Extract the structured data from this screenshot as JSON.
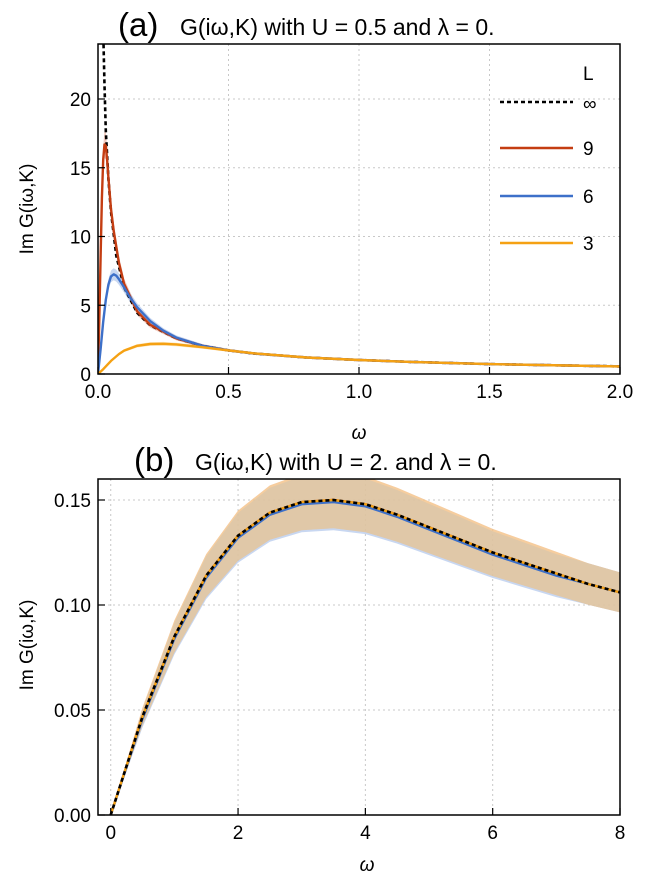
{
  "chart_data": [
    {
      "type": "line",
      "panel_label": "(a)",
      "title": "G(iω,K) with U = 0.5 and λ = 0.",
      "xlabel": "ω",
      "ylabel": "Im G(iω,K)",
      "xlim": [
        0,
        2.0
      ],
      "ylim": [
        0,
        24
      ],
      "xticks": [
        "0.0",
        "0.5",
        "1.0",
        "1.5",
        "2.0"
      ],
      "xtick_values": [
        0,
        0.5,
        1.0,
        1.5,
        2.0
      ],
      "yticks": [
        "0",
        "5",
        "10",
        "15",
        "20"
      ],
      "ytick_values": [
        0,
        5,
        10,
        15,
        20
      ],
      "grid": true,
      "legend_title": "L",
      "legend_position": "top-right",
      "series": [
        {
          "name": "∞",
          "color": "#000000",
          "dashed": true,
          "x": [
            0.02,
            0.025,
            0.03,
            0.04,
            0.05,
            0.07,
            0.1,
            0.15,
            0.2,
            0.3,
            0.4,
            0.5,
            0.6,
            0.8,
            1.0,
            1.2,
            1.5,
            1.8,
            2.0
          ],
          "y": [
            25,
            21.0,
            17.7,
            14.2,
            11.8,
            8.6,
            6.3,
            4.45,
            3.55,
            2.6,
            2.05,
            1.72,
            1.48,
            1.2,
            1.02,
            0.88,
            0.72,
            0.62,
            0.55
          ]
        },
        {
          "name": "9",
          "color": "#c43d12",
          "band": "#e8a08a",
          "x": [
            0,
            0.005,
            0.01,
            0.015,
            0.02,
            0.025,
            0.03,
            0.035,
            0.04,
            0.05,
            0.06,
            0.08,
            0.1,
            0.15,
            0.2,
            0.3,
            0.4,
            0.5,
            0.6,
            0.8,
            1.0,
            1.2,
            1.5,
            1.8,
            2.0
          ],
          "y": [
            0,
            4,
            8.5,
            12.8,
            15.6,
            16.7,
            16.6,
            15.6,
            14.3,
            12.0,
            10.4,
            8.1,
            6.55,
            4.55,
            3.58,
            2.6,
            2.05,
            1.72,
            1.48,
            1.2,
            1.02,
            0.88,
            0.72,
            0.62,
            0.55
          ]
        },
        {
          "name": "6",
          "color": "#3d70c9",
          "band": "#9bb6e6",
          "x": [
            0,
            0.01,
            0.02,
            0.03,
            0.04,
            0.05,
            0.06,
            0.07,
            0.08,
            0.1,
            0.12,
            0.15,
            0.2,
            0.25,
            0.3,
            0.4,
            0.5,
            0.6,
            0.8,
            1.0,
            1.2,
            1.5,
            1.8,
            2.0
          ],
          "y": [
            0,
            1.8,
            3.8,
            5.4,
            6.5,
            7.1,
            7.25,
            7.15,
            6.9,
            6.3,
            5.65,
            4.85,
            3.85,
            3.15,
            2.65,
            2.05,
            1.72,
            1.48,
            1.2,
            1.02,
            0.88,
            0.72,
            0.62,
            0.55
          ]
        },
        {
          "name": "3",
          "color": "#f5a113",
          "band": "#f9cf83",
          "x": [
            0,
            0.02,
            0.05,
            0.08,
            0.1,
            0.15,
            0.2,
            0.25,
            0.3,
            0.4,
            0.5,
            0.6,
            0.8,
            1.0,
            1.2,
            1.5,
            1.8,
            2.0
          ],
          "y": [
            0,
            0.35,
            0.95,
            1.45,
            1.7,
            2.05,
            2.18,
            2.2,
            2.15,
            1.95,
            1.72,
            1.5,
            1.2,
            1.02,
            0.88,
            0.72,
            0.62,
            0.55
          ]
        }
      ]
    },
    {
      "type": "line",
      "panel_label": "(b)",
      "title": "G(iω,K) with U = 2. and λ = 0.",
      "xlabel": "ω",
      "ylabel": "Im G(iω,K)",
      "xlim": [
        -0.2,
        8.0
      ],
      "ylim": [
        0,
        0.16
      ],
      "xticks": [
        "0",
        "2",
        "4",
        "6",
        "8"
      ],
      "xtick_values": [
        0,
        2,
        4,
        6,
        8
      ],
      "yticks": [
        "0.00",
        "0.05",
        "0.10",
        "0.15"
      ],
      "ytick_values": [
        0,
        0.05,
        0.1,
        0.15
      ],
      "grid": true,
      "series": [
        {
          "name": "9",
          "color": "#c43d12",
          "band": "#e8a08a",
          "x": [
            0,
            0.5,
            1,
            1.5,
            2,
            2.5,
            3,
            3.5,
            4,
            4.5,
            5,
            5.5,
            6,
            6.5,
            7,
            7.5,
            8
          ],
          "y": [
            0,
            0.047,
            0.085,
            0.114,
            0.133,
            0.144,
            0.149,
            0.15,
            0.148,
            0.143,
            0.137,
            0.131,
            0.125,
            0.12,
            0.115,
            0.11,
            0.106
          ]
        },
        {
          "name": "6",
          "color": "#3d70c9",
          "band": "#9bb6e6",
          "x": [
            0,
            0.5,
            1,
            1.5,
            2,
            2.5,
            3,
            3.5,
            4,
            4.5,
            5,
            5.5,
            6,
            6.5,
            7,
            7.5,
            8
          ],
          "y": [
            0,
            0.046,
            0.084,
            0.113,
            0.132,
            0.143,
            0.148,
            0.149,
            0.147,
            0.142,
            0.136,
            0.13,
            0.124,
            0.119,
            0.114,
            0.11,
            0.106
          ]
        },
        {
          "name": "3",
          "color": "#f5a113",
          "band": "#f9cf83",
          "x": [
            0,
            0.5,
            1,
            1.5,
            2,
            2.5,
            3,
            3.5,
            4,
            4.5,
            5,
            5.5,
            6,
            6.5,
            7,
            7.5,
            8
          ],
          "y": [
            0,
            0.047,
            0.085,
            0.114,
            0.133,
            0.144,
            0.149,
            0.15,
            0.148,
            0.143,
            0.137,
            0.131,
            0.125,
            0.12,
            0.115,
            0.11,
            0.106
          ]
        },
        {
          "name": "∞",
          "color": "#000000",
          "dashed": true,
          "x": [
            0,
            0.5,
            1,
            1.5,
            2,
            2.5,
            3,
            3.5,
            4,
            4.5,
            5,
            5.5,
            6,
            6.5,
            7,
            7.5,
            8
          ],
          "y": [
            0,
            0.047,
            0.085,
            0.114,
            0.133,
            0.144,
            0.149,
            0.15,
            0.148,
            0.143,
            0.137,
            0.131,
            0.125,
            0.12,
            0.115,
            0.11,
            0.106
          ]
        }
      ]
    }
  ]
}
